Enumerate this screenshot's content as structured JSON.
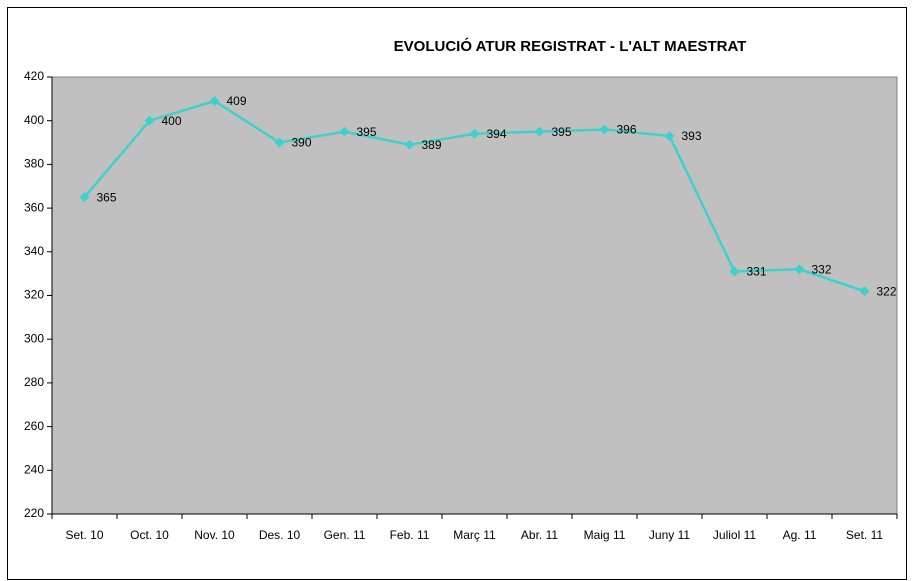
{
  "chart_data": {
    "type": "line",
    "title": "EVOLUCIÓ ATUR REGISTRAT - L'ALT MAESTRAT",
    "categories": [
      "Set. 10",
      "Oct. 10",
      "Nov. 10",
      "Des. 10",
      "Gen. 11",
      "Feb. 11",
      "Març 11",
      "Abr. 11",
      "Maig 11",
      "Juny 11",
      "Juliol 11",
      "Ag. 11",
      "Set. 11"
    ],
    "values": [
      365,
      400,
      409,
      390,
      395,
      389,
      394,
      395,
      396,
      393,
      331,
      332,
      322
    ],
    "color": "#40d0cc",
    "ylim": [
      220,
      420
    ],
    "yticks": [
      220,
      240,
      260,
      280,
      300,
      320,
      340,
      360,
      380,
      400,
      420
    ]
  }
}
